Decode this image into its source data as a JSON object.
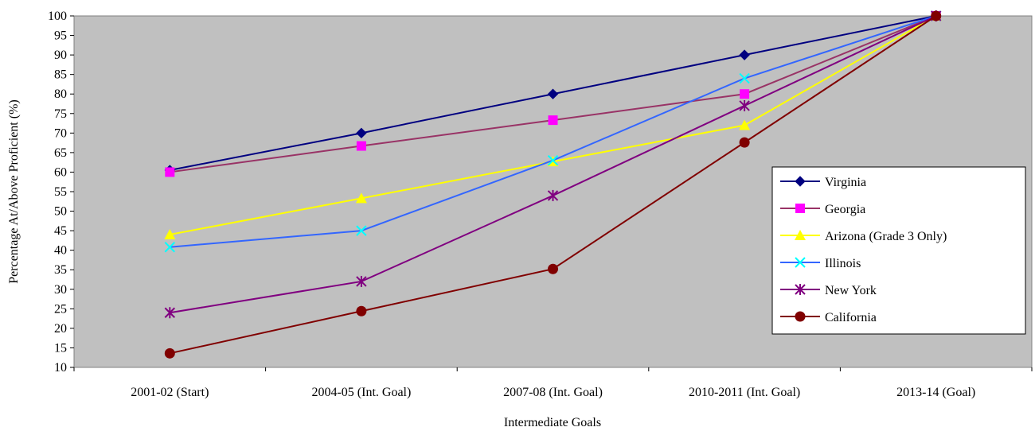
{
  "chart_data": {
    "type": "line",
    "title": "",
    "xlabel": "Intermediate Goals",
    "ylabel": "Percentage At/Above Proficient (%)",
    "ylim": [
      10,
      100
    ],
    "yticks": [
      10,
      15,
      20,
      25,
      30,
      35,
      40,
      45,
      50,
      55,
      60,
      65,
      70,
      75,
      80,
      85,
      90,
      95,
      100
    ],
    "categories": [
      "2001-02 (Start)",
      "2004-05 (Int. Goal)",
      "2007-08 (Int. Goal)",
      "2010-2011 (Int. Goal)",
      "2013-14 (Goal)"
    ],
    "grid": false,
    "plot_background": "#c0c0c0",
    "legend_position": "right",
    "series": [
      {
        "name": "Virginia",
        "values": [
          60.5,
          70,
          80,
          90,
          100
        ],
        "color": "#000080",
        "marker": "diamond"
      },
      {
        "name": "Georgia",
        "values": [
          60,
          66.7,
          73.3,
          80,
          100
        ],
        "color": "#993366",
        "marker_color": "#ff00ff",
        "marker": "square"
      },
      {
        "name": "Arizona (Grade 3 Only)",
        "values": [
          44,
          53.3,
          62.7,
          72,
          100
        ],
        "color": "#ffff00",
        "marker": "triangle"
      },
      {
        "name": "Illinois",
        "values": [
          40.8,
          45,
          63,
          84,
          100
        ],
        "color": "#3366ff",
        "marker_color": "#00ffff",
        "marker": "x"
      },
      {
        "name": "New York",
        "values": [
          24,
          32,
          54,
          77,
          100
        ],
        "color": "#800080",
        "marker": "asterisk"
      },
      {
        "name": "California",
        "values": [
          13.6,
          24.4,
          35.2,
          67.6,
          100
        ],
        "color": "#800000",
        "marker": "circle"
      }
    ]
  }
}
